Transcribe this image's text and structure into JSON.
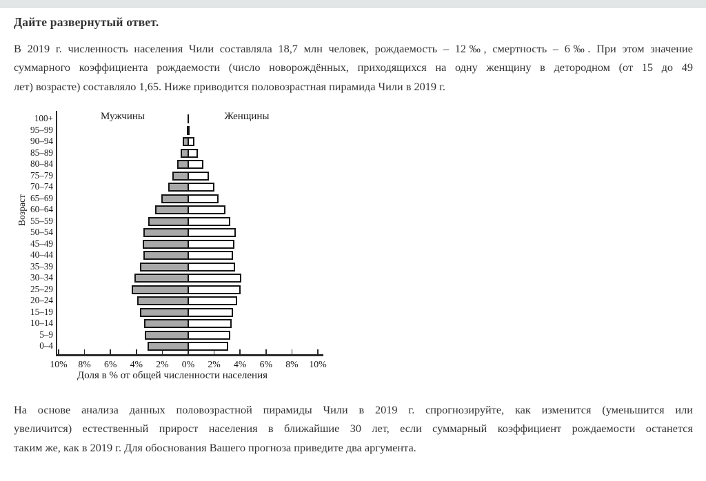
{
  "page": {
    "top_strip_color": "#e2e6e6",
    "title": "Дайте развернутый ответ.",
    "paragraph1_lines": [
      "В 2019 г. численность населения Чили составляла 18,7 млн человек, рождаемость – 12‰, смертность – 6‰. При этом значение",
      "суммарного коэффициента рождаемости (число новорождённых, приходящихся на одну женщину в детородном (от 15 до 49",
      "лет) возрасте) составляло 1,65. Ниже приводится половозрастная пирамида Чили в 2019 г."
    ],
    "paragraph2_lines": [
      "На основе анализа данных половозрастной пирамиды Чили в 2019 г. спрогнозируйте, как изменится (уменьшится или",
      "увеличится) естественный прирост населения в ближайшие 30 лет, если суммарный коэффициент рождаемости останется",
      "таким же, как в 2019 г. Для обоснования Вашего прогноза приведите два аргумента."
    ]
  },
  "chart_data": {
    "type": "bar",
    "subtype": "population_pyramid",
    "left_series_label": "Мужчины",
    "right_series_label": "Женщины",
    "ylabel": "Возраст",
    "xlabel": "Доля в % от общей численности населения",
    "x_tick_labels": [
      "10%",
      "8%",
      "6%",
      "4%",
      "2%",
      "0%",
      "2%",
      "4%",
      "6%",
      "8%",
      "10%"
    ],
    "xlim_pct": [
      -10,
      10
    ],
    "grid": false,
    "age_groups": [
      "100+",
      "95–99",
      "90–94",
      "85–89",
      "80–84",
      "75–79",
      "70–74",
      "65–69",
      "60–64",
      "55–59",
      "50–54",
      "45–49",
      "40–44",
      "35–39",
      "30–34",
      "25–29",
      "20–24",
      "15–19",
      "10–14",
      "5–9",
      "0–4"
    ],
    "series": [
      {
        "name": "Мужчины",
        "side": "left",
        "fill": "#a9a9a9",
        "values_pct": [
          0.02,
          0.1,
          0.25,
          0.4,
          0.7,
          1.05,
          1.4,
          1.9,
          2.4,
          2.9,
          3.3,
          3.35,
          3.3,
          3.55,
          4.0,
          4.2,
          3.8,
          3.55,
          3.25,
          3.2,
          3.0
        ]
      },
      {
        "name": "Женщины",
        "side": "right",
        "fill": "#ffffff",
        "values_pct": [
          0.03,
          0.12,
          0.3,
          0.6,
          1.0,
          1.45,
          1.85,
          2.2,
          2.7,
          3.1,
          3.5,
          3.4,
          3.3,
          3.45,
          3.95,
          3.9,
          3.6,
          3.3,
          3.2,
          3.1,
          2.95
        ]
      }
    ],
    "bar_border_color": "#141414"
  }
}
